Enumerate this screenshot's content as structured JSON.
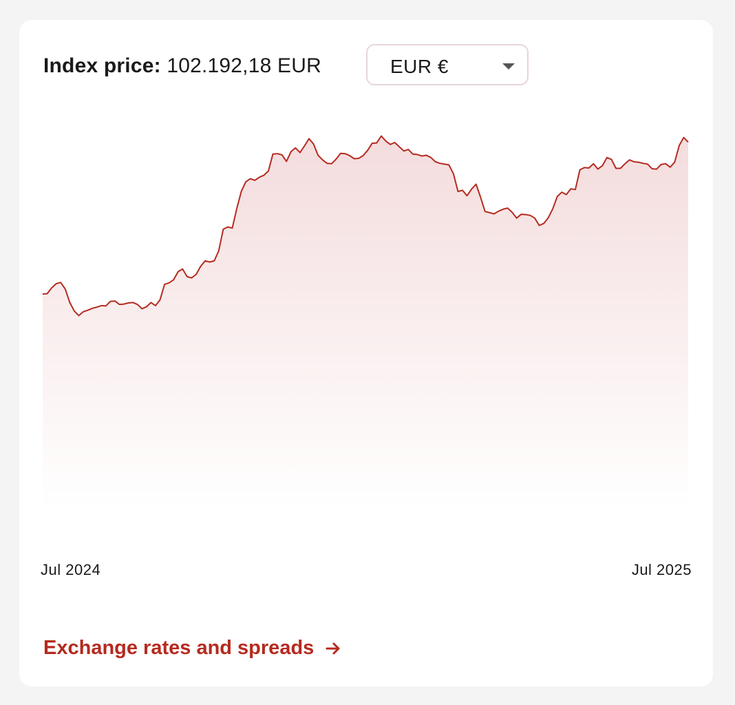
{
  "header": {
    "price_label": "Index price:",
    "price_value": "102.192,18 EUR"
  },
  "currency_select": {
    "selected": "EUR €",
    "icon": "caret-down-icon"
  },
  "link": {
    "label": "Exchange rates and spreads",
    "icon": "arrow-right-icon"
  },
  "colors": {
    "line": "#b52a1f",
    "fill_top": "#f4dcdd",
    "fill_bottom": "#ffffff",
    "link": "#b52a1f"
  },
  "chart_data": {
    "type": "area",
    "title": "",
    "xlabel": "",
    "ylabel": "",
    "x_tick_labels": [
      "Jul 2024",
      "Jul 2025"
    ],
    "series": [
      {
        "name": "",
        "values": [
          55.7,
          55.8,
          57.3,
          58.4,
          58.7,
          57.0,
          53.5,
          51.3,
          50.1,
          51.1,
          51.5,
          52.0,
          52.3,
          52.7,
          52.6,
          53.8,
          53.9,
          53.0,
          53.1,
          53.4,
          53.5,
          53.0,
          51.9,
          52.4,
          53.5,
          52.7,
          54.2,
          58.2,
          58.6,
          59.4,
          61.5,
          62.2,
          60.2,
          59.9,
          60.8,
          62.9,
          64.3,
          64.0,
          64.3,
          66.9,
          72.5,
          73.1,
          72.8,
          77.9,
          82.3,
          84.8,
          85.6,
          85.2,
          86.0,
          86.5,
          87.6,
          92.0,
          92.1,
          91.8,
          90.1,
          92.6,
          93.6,
          92.4,
          94.1,
          96.0,
          94.6,
          91.7,
          90.5,
          89.6,
          89.5,
          90.7,
          92.2,
          92.1,
          91.6,
          90.8,
          90.9,
          91.6,
          93.0,
          94.8,
          94.9,
          96.7,
          95.4,
          94.5,
          95.0,
          93.9,
          92.8,
          93.2,
          92.0,
          91.9,
          91.5,
          91.7,
          91.1,
          90.0,
          89.6,
          89.4,
          89.2,
          86.9,
          82.3,
          82.6,
          81.2,
          82.9,
          84.2,
          80.8,
          77.1,
          76.8,
          76.5,
          77.2,
          77.7,
          78.0,
          76.9,
          75.4,
          76.4,
          76.3,
          76.1,
          75.4,
          73.5,
          74.0,
          75.5,
          77.8,
          81.0,
          82.1,
          81.5,
          83.0,
          82.8,
          87.9,
          88.5,
          88.4,
          89.5,
          88.1,
          89.0,
          91.1,
          90.6,
          88.3,
          88.3,
          89.5,
          90.5,
          90.0,
          89.9,
          89.6,
          89.4,
          88.2,
          88.1,
          89.3,
          89.5,
          88.6,
          89.9,
          94.2,
          96.3,
          95.1
        ],
        "note": "approximate weekly index values read from chart shape (relative units, axis values not printed)"
      }
    ],
    "ylim": [
      0,
      100
    ],
    "grid": false,
    "legend": "none"
  }
}
